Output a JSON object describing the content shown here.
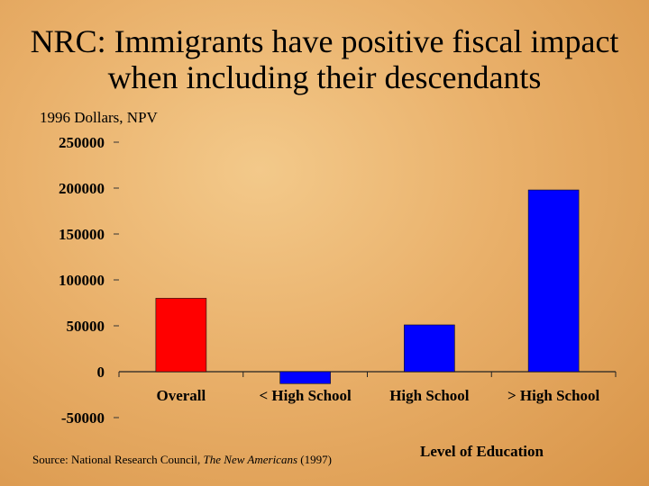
{
  "title_line1": "NRC: Immigrants have positive fiscal impact",
  "title_line2": "when including their descendants",
  "units_label": "1996 Dollars, NPV",
  "source": {
    "prefix": "Source: National Research Council, ",
    "work": "The New Americans",
    "suffix": " (1997)"
  },
  "chart_data": {
    "type": "bar",
    "title": "NRC: Immigrants have positive fiscal impact when including their descendants",
    "ylabel": "1996 Dollars, NPV",
    "xlabel": "Level of Education",
    "categories": [
      "Overall",
      "< High School",
      "High School",
      "> High School"
    ],
    "values": [
      80000,
      -13000,
      51000,
      198000
    ],
    "colors": [
      "#ff0000",
      "#0000ff",
      "#0000ff",
      "#0000ff"
    ],
    "ylim": [
      -50000,
      250000
    ],
    "yticks": [
      250000,
      200000,
      150000,
      100000,
      50000,
      0,
      -50000
    ],
    "ytick_labels": [
      "250000",
      "200000",
      "150000",
      "100000",
      "50000",
      "0",
      "-50000"
    ],
    "grid": false
  }
}
